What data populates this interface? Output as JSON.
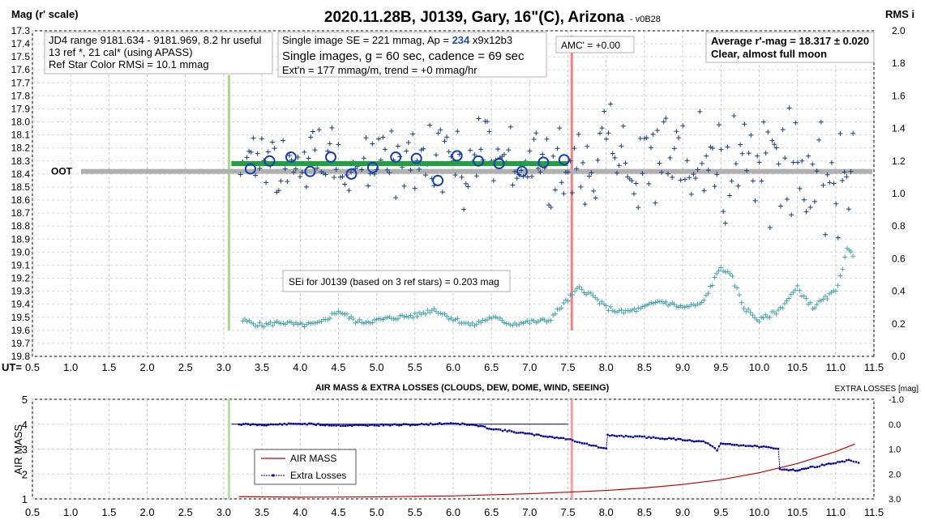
{
  "chart_data": [
    {
      "type": "scatter",
      "title": "2020.11.28B, J0139, Gary, 16\"(C), Arizona",
      "title_suffix": "- v0B28",
      "ylabel_left": "Mag (r' scale)",
      "ylabel_right": "RMS i",
      "x_axis_label": "UT=",
      "xlim": [
        0.5,
        11.5
      ],
      "ylim_left": [
        17.3,
        19.8
      ],
      "ylim_right": [
        0.0,
        2.0
      ],
      "y_inverted": true,
      "grid": true,
      "x_ticks": [
        "0.5",
        "1.0",
        "1.5",
        "2.0",
        "2.5",
        "3.0",
        "3.5",
        "4.0",
        "4.5",
        "5.0",
        "5.5",
        "6.0",
        "6.5",
        "7.0",
        "7.5",
        "8.0",
        "8.5",
        "9.0",
        "9.5",
        "10.0",
        "10.5",
        "11.0",
        "11.5"
      ],
      "y_ticks_left": [
        "17.3",
        "17.4",
        "17.5",
        "17.6",
        "17.7",
        "17.8",
        "17.9",
        "18.0",
        "18.1",
        "18.2",
        "18.3",
        "18.4",
        "18.5",
        "18.6",
        "18.7",
        "18.8",
        "18.9",
        "19.0",
        "19.1",
        "19.2",
        "19.3",
        "19.4",
        "19.5",
        "19.6",
        "19.7",
        "19.8"
      ],
      "y_ticks_right": [
        "2.0",
        "1.8",
        "1.6",
        "1.4",
        "1.2",
        "1.0",
        "0.8",
        "0.6",
        "0.4",
        "0.2",
        "0.0"
      ],
      "info_boxes": {
        "jd": [
          "JD4 range 9181.634 - 9181.969, 8.2 hr useful",
          "13 ref *, 21 cal* (using APASS)",
          "Ref Star Color RMSi = 10.1 mmag"
        ],
        "single_se_prefix": "Single image SE = 221 mmag, Ap = ",
        "single_se_ap": "234",
        "single_se_suffix": " x9x12b3",
        "single_images": "Single images, g = 60 sec, cadence = 69 sec",
        "extn": "Ext'n = 177 mmag/m, trend = +0 mmag/hr",
        "amc": "AMC' = +0.00",
        "avg": [
          "Average r'-mag =  18.317 ± 0.020",
          "Clear, almost full moon"
        ],
        "sei": "SEi for J0139 (based on 3 ref stars) = 0.203 mag"
      },
      "oot_label": "OOT",
      "oot_level": 18.38,
      "transit_level": 18.32,
      "transit_x": [
        3.1,
        7.5
      ],
      "green_marker_x": 3.07,
      "red_marker_x": 7.55,
      "colors": {
        "single": "#1f3c78",
        "binned": "#1a3fae",
        "sei": "#4aa3a8",
        "transit": "#20a040",
        "oot": "#b0b0b0",
        "red_marker": "#f08080",
        "green_marker": "#a8dc88"
      },
      "series": [
        {
          "name": "single_images",
          "x_start": 3.22,
          "x_step": 0.0278,
          "count": 290,
          "seed": 17,
          "mean_start": 18.32,
          "mean_end": 18.32,
          "scatter_start": 0.17,
          "scatter_end": 0.33
        },
        {
          "name": "binned_averages",
          "points": [
            [
              3.35,
              18.36
            ],
            [
              3.6,
              18.3
            ],
            [
              3.88,
              18.27
            ],
            [
              4.13,
              18.38
            ],
            [
              4.4,
              18.27
            ],
            [
              4.67,
              18.4
            ],
            [
              4.95,
              18.35
            ],
            [
              5.25,
              18.27
            ],
            [
              5.52,
              18.28
            ],
            [
              5.8,
              18.45
            ],
            [
              6.05,
              18.26
            ],
            [
              6.33,
              18.3
            ],
            [
              6.6,
              18.32
            ],
            [
              6.9,
              18.38
            ],
            [
              7.18,
              18.31
            ],
            [
              7.45,
              18.29
            ]
          ]
        },
        {
          "name": "SEi",
          "points": [
            [
              3.25,
              0.22
            ],
            [
              3.5,
              0.19
            ],
            [
              3.75,
              0.21
            ],
            [
              4.0,
              0.19
            ],
            [
              4.25,
              0.2
            ],
            [
              4.5,
              0.28
            ],
            [
              4.75,
              0.21
            ],
            [
              5.0,
              0.22
            ],
            [
              5.25,
              0.24
            ],
            [
              5.5,
              0.25
            ],
            [
              5.75,
              0.29
            ],
            [
              6.0,
              0.23
            ],
            [
              6.25,
              0.19
            ],
            [
              6.5,
              0.24
            ],
            [
              6.75,
              0.2
            ],
            [
              7.0,
              0.21
            ],
            [
              7.25,
              0.22
            ],
            [
              7.5,
              0.35
            ],
            [
              7.65,
              0.42
            ],
            [
              7.8,
              0.38
            ],
            [
              8.0,
              0.3
            ],
            [
              8.2,
              0.27
            ],
            [
              8.45,
              0.29
            ],
            [
              8.7,
              0.34
            ],
            [
              9.0,
              0.3
            ],
            [
              9.25,
              0.32
            ],
            [
              9.5,
              0.55
            ],
            [
              9.65,
              0.48
            ],
            [
              9.8,
              0.3
            ],
            [
              10.0,
              0.22
            ],
            [
              10.25,
              0.28
            ],
            [
              10.5,
              0.42
            ],
            [
              10.7,
              0.3
            ],
            [
              11.0,
              0.4
            ],
            [
              11.15,
              0.65
            ],
            [
              11.25,
              0.62
            ]
          ]
        }
      ]
    },
    {
      "type": "line",
      "title": "AIR MASS & EXTRA LOSSES (CLOUDS, DEW, DOME, WIND, SEEING)",
      "ylabel_left": "AIR MASS",
      "ylabel_right": "EXTRA LOSSES [mag]",
      "xlim": [
        0.5,
        11.5
      ],
      "ylim_left": [
        1,
        5
      ],
      "ylim_right": [
        -1.0,
        3.0
      ],
      "x_ticks": [
        "0.5",
        "1.0",
        "1.5",
        "2.0",
        "2.5",
        "3.0",
        "3.5",
        "4.0",
        "4.5",
        "5.0",
        "5.5",
        "6.0",
        "6.5",
        "7.0",
        "7.5",
        "8.0",
        "8.5",
        "9.0",
        "9.5",
        "10.0",
        "10.5",
        "11.0",
        "11.5"
      ],
      "y_ticks_left": [
        "1",
        "2",
        "3",
        "4",
        "5"
      ],
      "y_ticks_right": [
        "-1.0",
        "0.0",
        "1.0",
        "2.0",
        "3.0"
      ],
      "legend": [
        "AIR MASS",
        "Extra Losses"
      ],
      "series": [
        {
          "name": "AIR MASS",
          "color": "#c00000",
          "points": [
            [
              3.2,
              1.09
            ],
            [
              4.0,
              1.07
            ],
            [
              5.0,
              1.08
            ],
            [
              6.0,
              1.12
            ],
            [
              7.0,
              1.21
            ],
            [
              7.5,
              1.27
            ],
            [
              8.0,
              1.34
            ],
            [
              8.5,
              1.44
            ],
            [
              9.0,
              1.58
            ],
            [
              9.5,
              1.77
            ],
            [
              10.0,
              2.05
            ],
            [
              10.5,
              2.42
            ],
            [
              11.0,
              2.9
            ],
            [
              11.25,
              3.2
            ]
          ]
        },
        {
          "name": "Extra Losses",
          "color": "#0000a0",
          "points": [
            [
              3.2,
              0.0
            ],
            [
              3.5,
              0.03
            ],
            [
              4.0,
              -0.02
            ],
            [
              4.5,
              0.05
            ],
            [
              5.0,
              0.04
            ],
            [
              5.5,
              0.02
            ],
            [
              6.0,
              -0.04
            ],
            [
              6.3,
              0.05
            ],
            [
              6.5,
              0.18
            ],
            [
              7.0,
              0.4
            ],
            [
              7.5,
              0.6
            ],
            [
              7.9,
              0.92
            ],
            [
              8.0,
              1.0
            ],
            [
              8.02,
              0.45
            ],
            [
              8.5,
              0.52
            ],
            [
              9.0,
              0.62
            ],
            [
              9.3,
              0.72
            ],
            [
              9.45,
              1.05
            ],
            [
              9.5,
              0.78
            ],
            [
              10.0,
              0.9
            ],
            [
              10.25,
              1.0
            ],
            [
              10.27,
              1.8
            ],
            [
              10.5,
              1.85
            ],
            [
              10.7,
              1.72
            ],
            [
              11.0,
              1.55
            ],
            [
              11.2,
              1.45
            ],
            [
              11.3,
              1.55
            ]
          ]
        },
        {
          "name": "reference",
          "points": [
            [
              3.1,
              0.0
            ],
            [
              7.5,
              0.0
            ]
          ]
        }
      ],
      "green_marker_x": 3.07,
      "red_marker_x": 7.55
    }
  ]
}
